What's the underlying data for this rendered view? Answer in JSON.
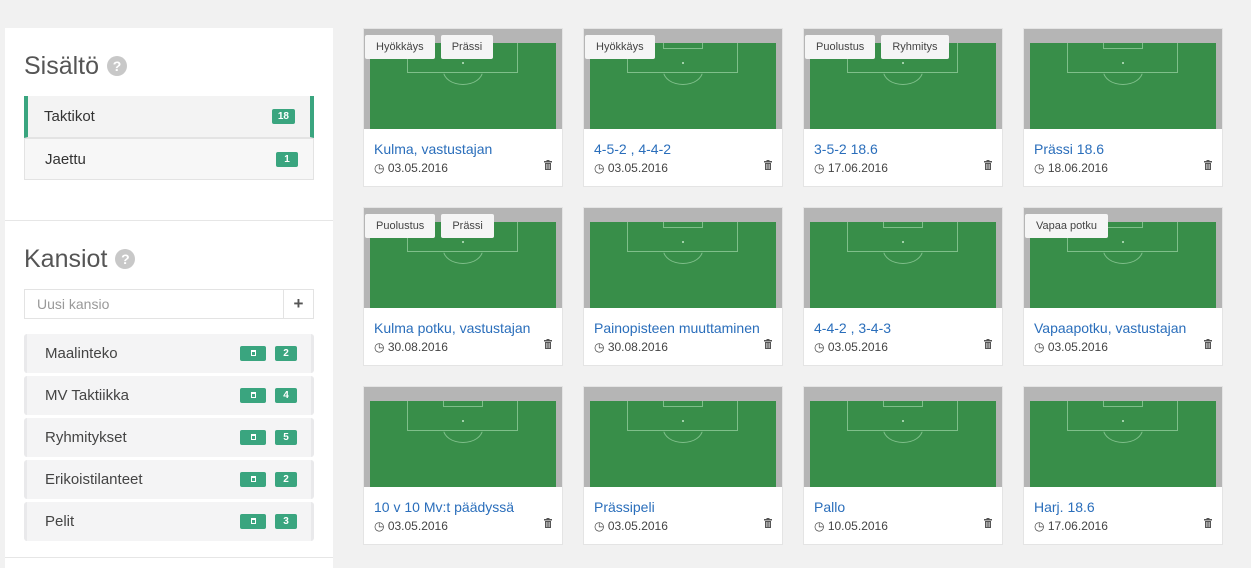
{
  "sidebar": {
    "content_title": "Sisältö",
    "content_items": [
      {
        "label": "Taktikot",
        "count": "18",
        "active": true
      },
      {
        "label": "Jaettu",
        "count": "1",
        "active": false
      }
    ],
    "folders_title": "Kansiot",
    "new_folder_placeholder": "Uusi kansio",
    "add_label": "+",
    "folders": [
      {
        "label": "Maalinteko",
        "count": "2"
      },
      {
        "label": "MV Taktiikka",
        "count": "4"
      },
      {
        "label": "Ryhmitykset",
        "count": "5"
      },
      {
        "label": "Erikoistilanteet",
        "count": "2"
      },
      {
        "label": "Pelit",
        "count": "3"
      }
    ]
  },
  "cards": [
    {
      "title": "Kulma, vastustajan",
      "date": "03.05.2016",
      "tags": [
        "Hyökkäys",
        "Prässi"
      ]
    },
    {
      "title": "4-5-2 , 4-4-2",
      "date": "03.05.2016",
      "tags": [
        "Hyökkäys"
      ]
    },
    {
      "title": "3-5-2 18.6",
      "date": "17.06.2016",
      "tags": [
        "Puolustus",
        "Ryhmitys"
      ]
    },
    {
      "title": "Prässi 18.6",
      "date": "18.06.2016",
      "tags": []
    },
    {
      "title": "Kulma potku, vastustajan",
      "date": "30.08.2016",
      "tags": [
        "Puolustus",
        "Prässi"
      ]
    },
    {
      "title": "Painopisteen muuttaminen",
      "date": "30.08.2016",
      "tags": []
    },
    {
      "title": "4-4-2 , 3-4-3",
      "date": "03.05.2016",
      "tags": []
    },
    {
      "title": "Vapaapotku, vastustajan",
      "date": "03.05.2016",
      "tags": [
        "Vapaa potku"
      ]
    },
    {
      "title": "10 v 10 Mv:t päädyssä",
      "date": "03.05.2016",
      "tags": []
    },
    {
      "title": "Prässipeli",
      "date": "03.05.2016",
      "tags": []
    },
    {
      "title": "Pallo",
      "date": "10.05.2016",
      "tags": []
    },
    {
      "title": "Harj. 18.6",
      "date": "17.06.2016",
      "tags": []
    }
  ],
  "colors": {
    "accent": "#3aa57f",
    "pitch": "#388e49",
    "link": "#2a6ebb"
  }
}
